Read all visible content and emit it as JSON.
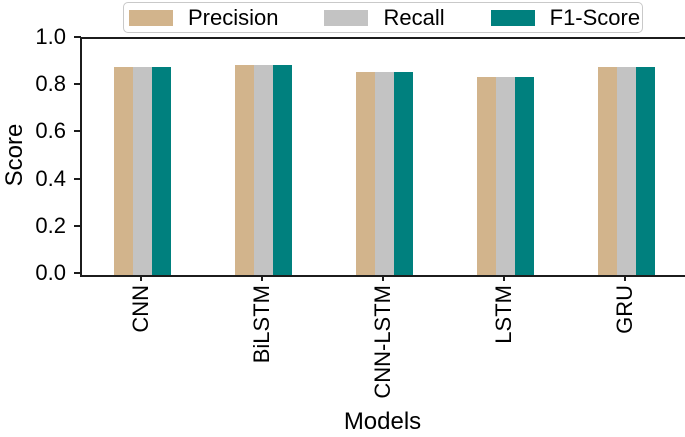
{
  "chart_data": {
    "type": "bar",
    "title": "",
    "categories": [
      "CNN",
      "BiLSTM",
      "CNN-LSTM",
      "LSTM",
      "GRU"
    ],
    "series": [
      {
        "name": "Precision",
        "color": "#d2b48c",
        "values": [
          0.88,
          0.89,
          0.86,
          0.84,
          0.88
        ]
      },
      {
        "name": "Recall",
        "color": "#c3c3c3",
        "values": [
          0.88,
          0.89,
          0.86,
          0.84,
          0.88
        ]
      },
      {
        "name": "F1-Score",
        "color": "#00807e",
        "values": [
          0.88,
          0.89,
          0.86,
          0.84,
          0.88
        ]
      }
    ],
    "xlabel": "Models",
    "ylabel": "Score",
    "ylim": [
      0.0,
      1.0
    ],
    "yticks": [
      0.0,
      0.2,
      0.4,
      0.6,
      0.8,
      1.0
    ],
    "ytick_labels": [
      "0.0",
      "0.2",
      "0.4",
      "0.6",
      "0.8",
      "1.0"
    ],
    "legend_position": "top-center",
    "legend_entries": [
      "Precision",
      "Recall",
      "F1-Score"
    ],
    "grid": false,
    "axis_color": "#1c1c1c"
  }
}
